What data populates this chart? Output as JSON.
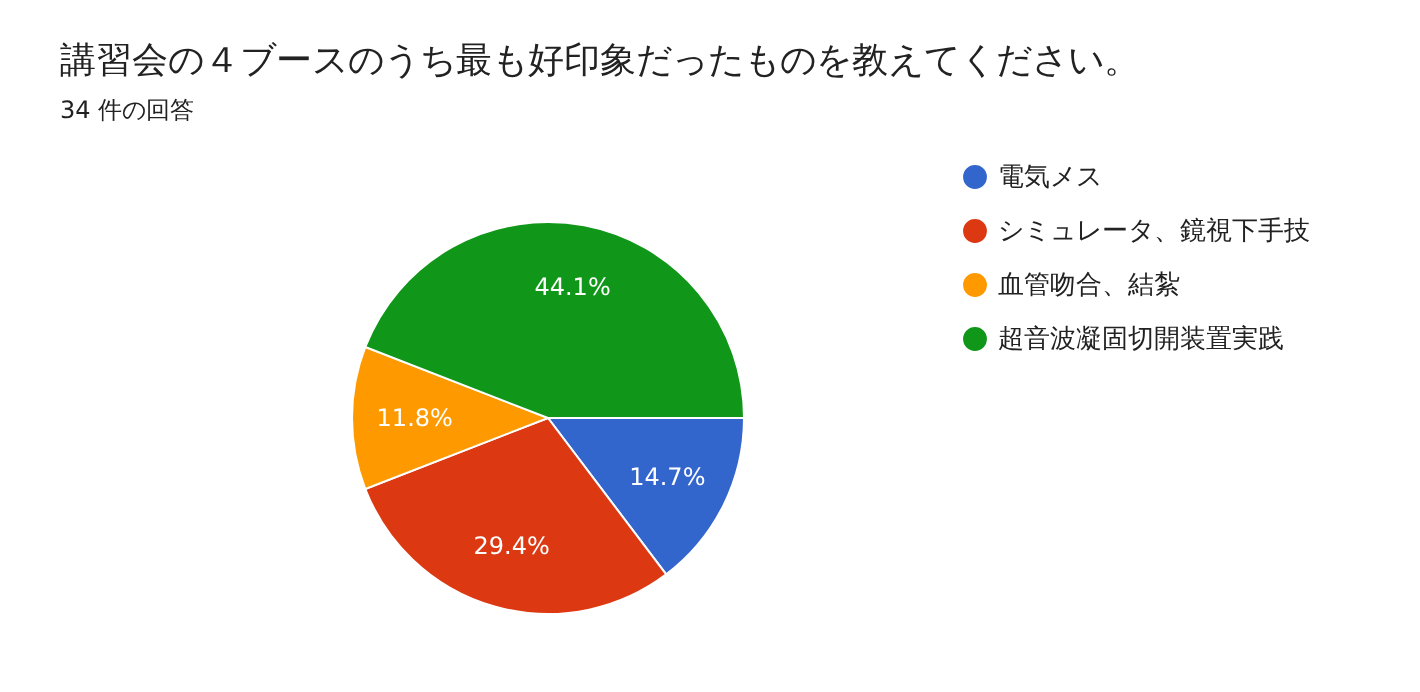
{
  "chart_data": {
    "type": "pie",
    "title": "講習会の４ブースのうち最も好印象だったものを教えてください。",
    "subtitle": "34 件の回答",
    "categories": [
      "電気メス",
      "シミュレータ、鏡視下手技",
      "血管吻合、結紮",
      "超音波凝固切開装置実践"
    ],
    "values": [
      14.7,
      29.4,
      11.8,
      44.1
    ],
    "colors": [
      "#3366cc",
      "#dc3912",
      "#ff9900",
      "#109618"
    ],
    "value_labels": [
      "14.7%",
      "29.4%",
      "11.8%",
      "44.1%"
    ],
    "legend": "right"
  }
}
